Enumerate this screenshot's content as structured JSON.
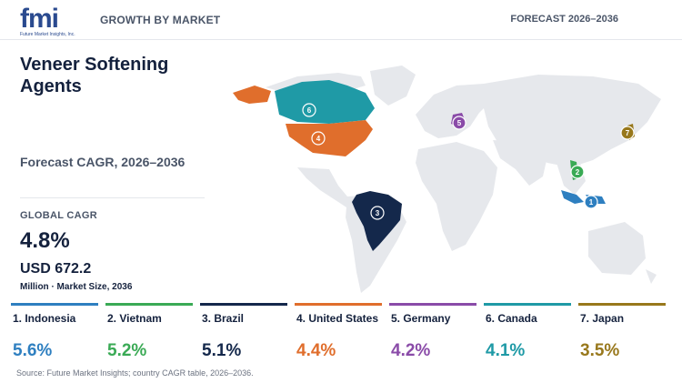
{
  "header": {
    "logo_text": "fmi",
    "logo_sub": "Future Market Insights, Inc.",
    "left_label": "GROWTH BY MARKET",
    "right_label": "FORECAST 2026–2036"
  },
  "title": "Veneer Softening Agents",
  "subtitle": "Forecast CAGR, 2026–2036",
  "kpi": {
    "label": "GLOBAL CAGR",
    "value": "4.8%",
    "size": "USD 672.2",
    "size_note": "Million · Market Size, 2036"
  },
  "colors": {
    "land": "#e6e8ec",
    "indonesia": "#2e7fc0",
    "vietnam": "#3aaa55",
    "brazil": "#14284b",
    "united_states": "#e06e2c",
    "germany": "#8a4ba8",
    "canada": "#1f9aa6",
    "japan": "#98781c"
  },
  "countries": [
    {
      "rank": "1",
      "label": "1. Indonesia",
      "cagr": "5.6%",
      "color": "#2e7fc0"
    },
    {
      "rank": "2",
      "label": "2. Vietnam",
      "cagr": "5.2%",
      "color": "#3aaa55"
    },
    {
      "rank": "3",
      "label": "3. Brazil",
      "cagr": "5.1%",
      "color": "#14284b"
    },
    {
      "rank": "4",
      "label": "4. United States",
      "cagr": "4.4%",
      "color": "#e06e2c"
    },
    {
      "rank": "5",
      "label": "5. Germany",
      "cagr": "4.2%",
      "color": "#8a4ba8"
    },
    {
      "rank": "6",
      "label": "6. Canada",
      "cagr": "4.1%",
      "color": "#1f9aa6"
    },
    {
      "rank": "7",
      "label": "7. Japan",
      "cagr": "3.5%",
      "color": "#98781c"
    }
  ],
  "source": "Source: Future Market Insights; country CAGR table, 2026–2036."
}
